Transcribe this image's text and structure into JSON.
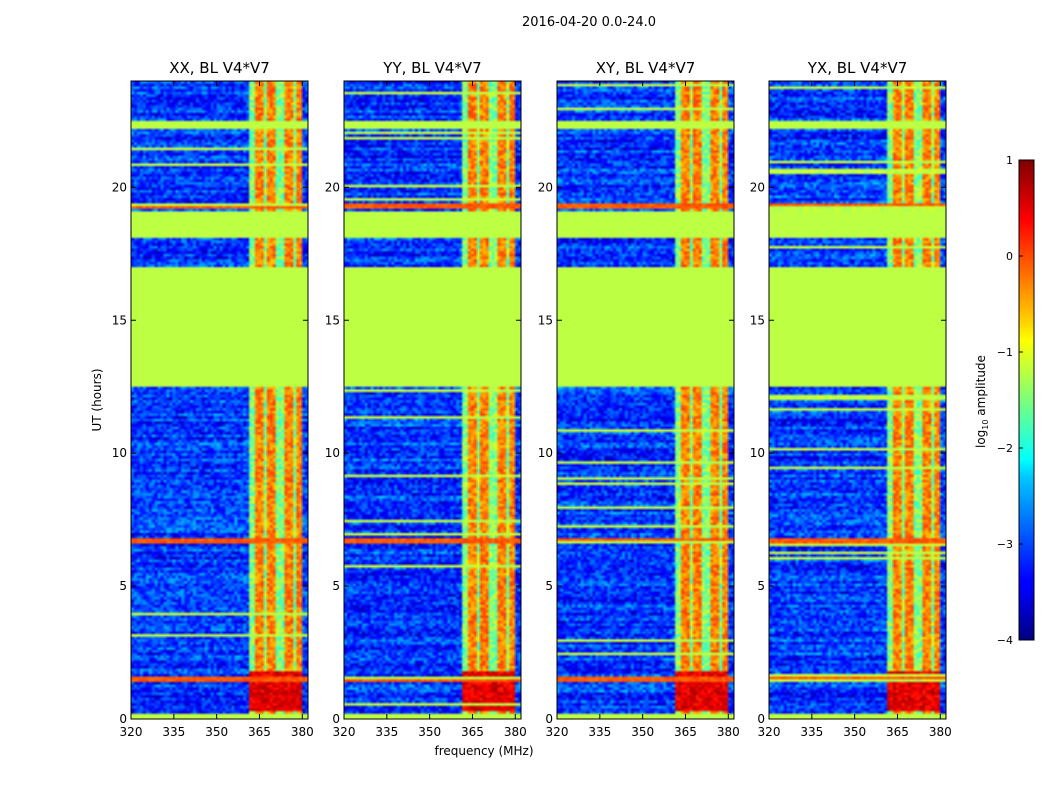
{
  "chart_data": {
    "type": "heatmap",
    "suptitle": "2016-04-20 0.0-24.0",
    "xlabel": "frequency (MHz)",
    "ylabel": "UT (hours)",
    "xlim": [
      320,
      382
    ],
    "ylim": [
      0,
      24
    ],
    "xticks": [
      320,
      335,
      350,
      365,
      380
    ],
    "yticks": [
      0,
      5,
      10,
      15,
      20
    ],
    "colormap": "jet",
    "colorbar": {
      "label": "log10 amplitude",
      "label_main": "log",
      "label_sub": "10",
      "label_rest": " amplitude",
      "range": [
        -4,
        1
      ],
      "ticks": [
        {
          "value": 1,
          "label": "1"
        },
        {
          "value": 0,
          "label": "0"
        },
        {
          "value": -1,
          "label": "−1"
        },
        {
          "value": -2,
          "label": "−2"
        },
        {
          "value": -3,
          "label": "−3"
        },
        {
          "value": -4,
          "label": "−4"
        }
      ]
    },
    "panels": [
      {
        "title": "XX, BL V4*V7"
      },
      {
        "title": "YY, BL V4*V7"
      },
      {
        "title": "XY, BL V4*V7"
      },
      {
        "title": "YX, BL V4*V7"
      }
    ],
    "flagged_value": -1.2,
    "flagged_ut_ranges": [
      [
        12.5,
        17.0
      ],
      [
        18.1,
        19.1
      ],
      [
        22.2,
        22.5
      ]
    ],
    "rfi_band_mhz": [
      361,
      380
    ],
    "rfi_channels_mhz": [
      364.5,
      369.5,
      375,
      379
    ],
    "rfi_strong_ut_range": [
      0.3,
      1.8
    ],
    "rfi_row_ut": [
      6.7,
      19.3,
      1.5
    ]
  }
}
